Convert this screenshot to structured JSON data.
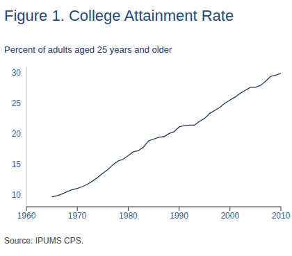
{
  "chart_data": {
    "type": "line",
    "title": "Figure 1. College Attainment Rate",
    "subtitle": "Percent of adults aged 25 years and older",
    "source": "Source: IPUMS CPS.",
    "x": [
      1965,
      1966,
      1967,
      1968,
      1969,
      1970,
      1971,
      1972,
      1973,
      1974,
      1975,
      1976,
      1977,
      1978,
      1979,
      1980,
      1981,
      1982,
      1983,
      1984,
      1985,
      1986,
      1987,
      1988,
      1989,
      1990,
      1991,
      1992,
      1993,
      1994,
      1995,
      1996,
      1997,
      1998,
      1999,
      2000,
      2001,
      2002,
      2003,
      2004,
      2005,
      2006,
      2007,
      2008,
      2009,
      2010
    ],
    "values": [
      9.6,
      9.8,
      10.1,
      10.5,
      10.8,
      11.0,
      11.3,
      11.7,
      12.2,
      12.8,
      13.5,
      14.1,
      14.9,
      15.5,
      15.8,
      16.4,
      17.0,
      17.2,
      17.8,
      18.8,
      19.1,
      19.4,
      19.5,
      20.0,
      20.3,
      21.1,
      21.3,
      21.4,
      21.4,
      22.0,
      22.5,
      23.3,
      23.8,
      24.3,
      25.0,
      25.5,
      26.0,
      26.6,
      27.1,
      27.6,
      27.6,
      27.9,
      28.6,
      29.4,
      29.6,
      29.9
    ],
    "color": "#1f3864",
    "xlim": [
      1960,
      2010
    ],
    "xticks": [
      1960,
      1970,
      1980,
      1990,
      2000,
      2010
    ],
    "ylim": [
      8,
      31
    ],
    "yticks": [
      10,
      15,
      20,
      25,
      30
    ],
    "grid": false,
    "marker": "none"
  }
}
